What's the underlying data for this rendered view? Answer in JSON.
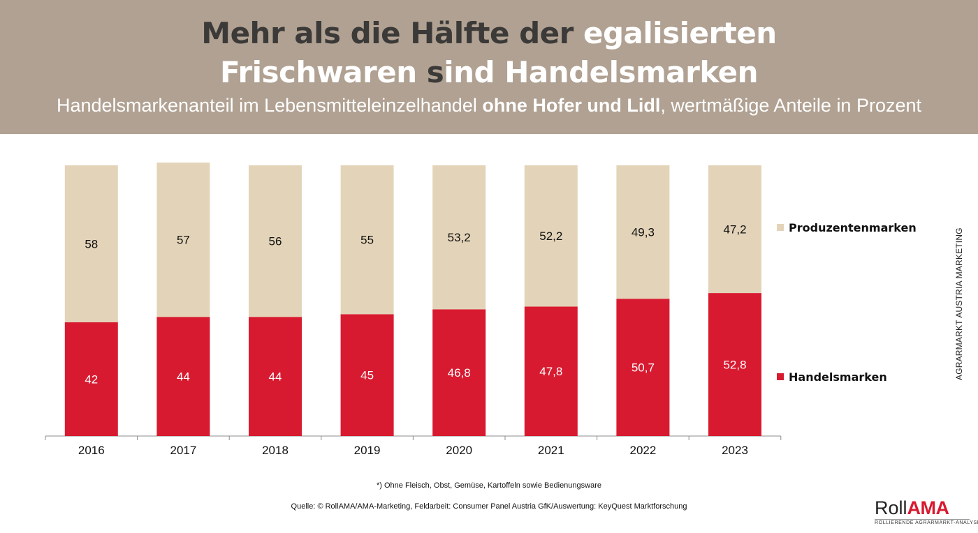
{
  "header": {
    "title_line1_dark": "Mehr als die Hälfte der",
    "title_line1_light": "egalisierten",
    "title_line2_light1": "Frischwaren",
    "title_line2_dark": "s",
    "title_line2_light2": "ind Handelsmarken",
    "subtitle_pre": "Handelsmarkenanteil im Lebensmitteleinzelhandel ",
    "subtitle_bold": "ohne Hofer und Lidl",
    "subtitle_post": ", wertmäßige Anteile in Prozent"
  },
  "side_label": "AGRARMARKT AUSTRIA MARKETING",
  "footnote": "*) Ohne Fleisch, Obst, Gemüse, Kartoffeln sowie Bedienungsware",
  "source": "Quelle: © RollAMA/AMA-Marketing, Feldarbeit: Consumer Panel Austria GfK/Auswertung: KeyQuest Marktforschung",
  "logo": {
    "roll": "Roll",
    "ama": "AMA",
    "tagline": "ROLLIERENDE AGRARMARKT-ANALYSE"
  },
  "colors": {
    "header_bg": "#b0a192",
    "handelsmarken": "#d81a30",
    "produzentenmarken": "#e3d4b9"
  },
  "chart_data": {
    "type": "bar",
    "stacked": true,
    "categories": [
      "2016",
      "2017",
      "2018",
      "2019",
      "2020",
      "2021",
      "2022",
      "2023"
    ],
    "series": [
      {
        "name": "Handelsmarken",
        "color": "#d81a30",
        "values": [
          42,
          44,
          44,
          45,
          46.8,
          47.8,
          50.7,
          52.8
        ],
        "labels": [
          "42",
          "44",
          "44",
          "45",
          "46,8",
          "47,8",
          "50,7",
          "52,8"
        ]
      },
      {
        "name": "Produzentenmarken",
        "color": "#e3d4b9",
        "values": [
          58,
          57,
          56,
          55,
          53.2,
          52.2,
          49.3,
          47.2
        ],
        "labels": [
          "58",
          "57",
          "56",
          "55",
          "53,2",
          "52,2",
          "49,3",
          "47,2"
        ]
      }
    ],
    "ylim": [
      0,
      101
    ],
    "legend": "right",
    "grid": false
  }
}
